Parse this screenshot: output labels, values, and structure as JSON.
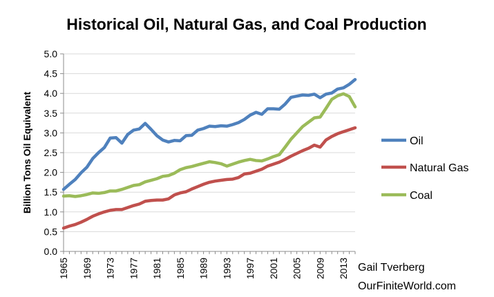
{
  "chart_data": {
    "type": "line",
    "title": "Historical Oil, Natural Gas, and Coal Production",
    "xlabel": "",
    "ylabel": "Billion Tons Oil Equivalent",
    "x": [
      1965,
      1966,
      1967,
      1968,
      1969,
      1970,
      1971,
      1972,
      1973,
      1974,
      1975,
      1976,
      1977,
      1978,
      1979,
      1980,
      1981,
      1982,
      1983,
      1984,
      1985,
      1986,
      1987,
      1988,
      1989,
      1990,
      1991,
      1992,
      1993,
      1994,
      1995,
      1996,
      1997,
      1998,
      1999,
      2000,
      2001,
      2002,
      2003,
      2004,
      2005,
      2006,
      2007,
      2008,
      2009,
      2010,
      2011,
      2012,
      2013,
      2014,
      2015
    ],
    "x_tick_labels": [
      "1965",
      "1969",
      "1973",
      "1977",
      "1981",
      "1985",
      "1989",
      "1993",
      "1997",
      "2001",
      "2005",
      "2009",
      "2013"
    ],
    "y_tick_labels": [
      "0.0",
      "0.5",
      "1.0",
      "1.5",
      "2.0",
      "2.5",
      "3.0",
      "3.5",
      "4.0",
      "4.5",
      "5.0"
    ],
    "xlim": [
      1965,
      2015
    ],
    "ylim": [
      0,
      5
    ],
    "grid": true,
    "legend_position": "right",
    "series": [
      {
        "name": "Oil",
        "color": "#4f81bd",
        "values": [
          1.57,
          1.7,
          1.82,
          1.99,
          2.13,
          2.35,
          2.5,
          2.63,
          2.87,
          2.88,
          2.74,
          2.96,
          3.07,
          3.1,
          3.24,
          3.09,
          2.93,
          2.82,
          2.77,
          2.81,
          2.8,
          2.93,
          2.94,
          3.07,
          3.11,
          3.17,
          3.16,
          3.18,
          3.17,
          3.21,
          3.26,
          3.34,
          3.45,
          3.52,
          3.47,
          3.61,
          3.61,
          3.6,
          3.73,
          3.9,
          3.93,
          3.96,
          3.95,
          3.98,
          3.89,
          3.98,
          4.01,
          4.11,
          4.14,
          4.23,
          4.35
        ]
      },
      {
        "name": "Natural Gas",
        "color": "#c0504d",
        "values": [
          0.59,
          0.64,
          0.68,
          0.74,
          0.81,
          0.89,
          0.95,
          1.0,
          1.04,
          1.06,
          1.06,
          1.11,
          1.16,
          1.2,
          1.27,
          1.29,
          1.3,
          1.3,
          1.33,
          1.43,
          1.48,
          1.51,
          1.58,
          1.64,
          1.7,
          1.75,
          1.78,
          1.8,
          1.82,
          1.83,
          1.87,
          1.96,
          1.98,
          2.03,
          2.08,
          2.16,
          2.21,
          2.26,
          2.33,
          2.41,
          2.48,
          2.55,
          2.61,
          2.69,
          2.64,
          2.82,
          2.91,
          2.98,
          3.03,
          3.08,
          3.13
        ]
      },
      {
        "name": "Coal",
        "color": "#9bbb59",
        "values": [
          1.4,
          1.41,
          1.39,
          1.41,
          1.44,
          1.48,
          1.47,
          1.49,
          1.53,
          1.53,
          1.57,
          1.62,
          1.67,
          1.69,
          1.76,
          1.8,
          1.84,
          1.9,
          1.92,
          1.98,
          2.07,
          2.12,
          2.15,
          2.19,
          2.23,
          2.27,
          2.25,
          2.22,
          2.16,
          2.21,
          2.26,
          2.3,
          2.33,
          2.3,
          2.29,
          2.34,
          2.4,
          2.45,
          2.64,
          2.84,
          3.0,
          3.16,
          3.27,
          3.38,
          3.4,
          3.62,
          3.85,
          3.94,
          3.99,
          3.92,
          3.66
        ]
      }
    ]
  },
  "credit": {
    "author": "Gail Tverberg",
    "site": "OurFiniteWorld.com"
  }
}
